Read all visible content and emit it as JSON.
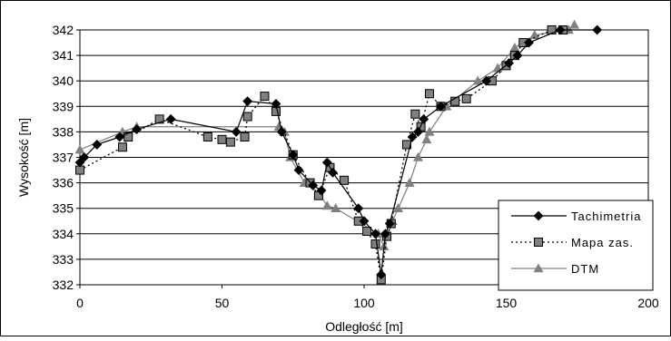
{
  "chart_data": {
    "type": "line",
    "title": "",
    "xlabel": "Odległość [m]",
    "ylabel": "Wysokość [m]",
    "xlim": [
      0,
      200
    ],
    "ylim": [
      332,
      342
    ],
    "x_ticks": [
      0,
      50,
      100,
      150,
      200
    ],
    "y_ticks": [
      332,
      333,
      334,
      335,
      336,
      337,
      338,
      339,
      340,
      341,
      342
    ],
    "grid": "horizontal",
    "legend_position": "bottom-right",
    "series": [
      {
        "name": "Tachimetria",
        "line_style": "solid",
        "marker": "diamond",
        "color": "#000000",
        "marker_color": "#000000",
        "points": [
          [
            0,
            336.8
          ],
          [
            1.5,
            337.0
          ],
          [
            6,
            337.5
          ],
          [
            14,
            337.8
          ],
          [
            20,
            338.1
          ],
          [
            32,
            338.5
          ],
          [
            55,
            338.0
          ],
          [
            59,
            339.2
          ],
          [
            69,
            339.1
          ],
          [
            71,
            338.0
          ],
          [
            75,
            337.1
          ],
          [
            77,
            336.5
          ],
          [
            82,
            335.9
          ],
          [
            85,
            335.7
          ],
          [
            87,
            336.8
          ],
          [
            89,
            336.4
          ],
          [
            98,
            335.0
          ],
          [
            100,
            334.5
          ],
          [
            104,
            334.0
          ],
          [
            106,
            332.4
          ],
          [
            107.5,
            334.0
          ],
          [
            109,
            334.4
          ],
          [
            117,
            337.8
          ],
          [
            119,
            338.0
          ],
          [
            121,
            338.5
          ],
          [
            127,
            339.0
          ],
          [
            143,
            340.0
          ],
          [
            151,
            340.7
          ],
          [
            154,
            341.0
          ],
          [
            158,
            341.5
          ],
          [
            169,
            342.0
          ],
          [
            182,
            342.0
          ]
        ]
      },
      {
        "name": "Mapa zas.",
        "line_style": "dotted",
        "marker": "square",
        "color": "#000000",
        "marker_color": "#808080",
        "points": [
          [
            0,
            336.5
          ],
          [
            15,
            337.4
          ],
          [
            17,
            337.8
          ],
          [
            28,
            338.5
          ],
          [
            45,
            337.8
          ],
          [
            50,
            337.7
          ],
          [
            53,
            337.6
          ],
          [
            58,
            337.8
          ],
          [
            59,
            338.6
          ],
          [
            65,
            339.4
          ],
          [
            69,
            338.8
          ],
          [
            75,
            337.1
          ],
          [
            81,
            336.0
          ],
          [
            84,
            335.5
          ],
          [
            88,
            336.6
          ],
          [
            93,
            336.1
          ],
          [
            98,
            334.5
          ],
          [
            101,
            334.1
          ],
          [
            104,
            333.6
          ],
          [
            106,
            332.2
          ],
          [
            108,
            333.9
          ],
          [
            109.5,
            334.4
          ],
          [
            115,
            337.5
          ],
          [
            118,
            338.7
          ],
          [
            120,
            338.2
          ],
          [
            123,
            339.5
          ],
          [
            127,
            339.0
          ],
          [
            132,
            339.2
          ],
          [
            136,
            339.3
          ],
          [
            145,
            340.0
          ],
          [
            150,
            340.6
          ],
          [
            153,
            341.0
          ],
          [
            156,
            341.5
          ],
          [
            166,
            342.0
          ],
          [
            170,
            342.0
          ]
        ]
      },
      {
        "name": "DTM",
        "line_style": "solid",
        "marker": "triangle",
        "color": "#808080",
        "marker_color": "#808080",
        "points": [
          [
            0,
            337.3
          ],
          [
            15,
            338.0
          ],
          [
            20,
            338.2
          ],
          [
            70,
            338.2
          ],
          [
            72,
            338.0
          ],
          [
            74,
            337.0
          ],
          [
            79,
            336.0
          ],
          [
            84,
            335.6
          ],
          [
            87,
            335.1
          ],
          [
            90,
            335.0
          ],
          [
            105,
            334.0
          ],
          [
            107,
            333.5
          ],
          [
            110,
            334.5
          ],
          [
            112,
            335.0
          ],
          [
            116,
            336.0
          ],
          [
            119,
            337.0
          ],
          [
            122,
            337.7
          ],
          [
            123,
            338.0
          ],
          [
            129,
            339.0
          ],
          [
            140,
            340.0
          ],
          [
            147,
            340.5
          ],
          [
            153,
            341.3
          ],
          [
            160,
            341.8
          ],
          [
            172,
            342.0
          ],
          [
            174,
            342.2
          ]
        ]
      }
    ]
  }
}
